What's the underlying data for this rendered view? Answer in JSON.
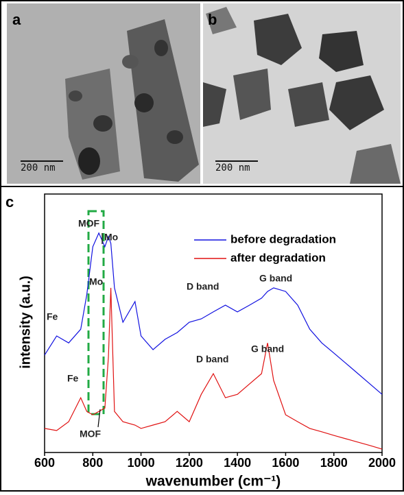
{
  "panels": [
    {
      "label": "a",
      "scale_bar": "200 nm"
    },
    {
      "label": "b",
      "scale_bar": "200 nm"
    }
  ],
  "chart_data": {
    "type": "line",
    "panel_label": "c",
    "x_label": "wavenumber (cm⁻¹)",
    "y_label": "intensity (a.u.)",
    "x": [
      600,
      650,
      700,
      750,
      775,
      800,
      825,
      850,
      865,
      875,
      890,
      925,
      975,
      1000,
      1050,
      1100,
      1150,
      1200,
      1250,
      1300,
      1350,
      1400,
      1450,
      1500,
      1525,
      1550,
      1600,
      1650,
      1700,
      1750,
      1800,
      1850,
      1900,
      1950,
      2000
    ],
    "series": [
      {
        "name": "before degradation",
        "color": "#1010e0",
        "values": [
          37.7,
          45.1,
          42.4,
          47.7,
          61.0,
          79.6,
          84.9,
          79.6,
          83.6,
          80.9,
          63.7,
          50.4,
          58.4,
          45.1,
          39.8,
          43.8,
          46.4,
          50.4,
          51.7,
          54.4,
          57.0,
          54.4,
          57.0,
          59.7,
          62.3,
          63.7,
          62.3,
          57.0,
          47.7,
          42.4,
          38.5,
          34.5,
          30.5,
          26.5,
          22.5
        ]
      },
      {
        "name": "after degradation",
        "color": "#e01010",
        "values": [
          9.3,
          8.5,
          11.9,
          21.2,
          15.9,
          14.6,
          15.9,
          17.2,
          37.1,
          63.7,
          15.9,
          11.9,
          10.6,
          9.3,
          10.6,
          11.9,
          15.9,
          11.9,
          22.5,
          30.5,
          21.2,
          22.5,
          26.5,
          30.5,
          42.4,
          27.9,
          14.6,
          11.9,
          9.3,
          8.0,
          6.6,
          5.3,
          4.0,
          2.7,
          1.3
        ]
      }
    ],
    "xlim": [
      600,
      2000
    ],
    "xticks": [
      600,
      800,
      1000,
      1200,
      1400,
      1600,
      1800,
      2000
    ],
    "ylim": [
      0,
      100
    ],
    "legend": "top-right",
    "annotations": [
      "Fe",
      "MOF",
      "Mo",
      "Mo",
      "D band",
      "G band",
      "Fe",
      "D band",
      "G band",
      "MOF"
    ]
  }
}
